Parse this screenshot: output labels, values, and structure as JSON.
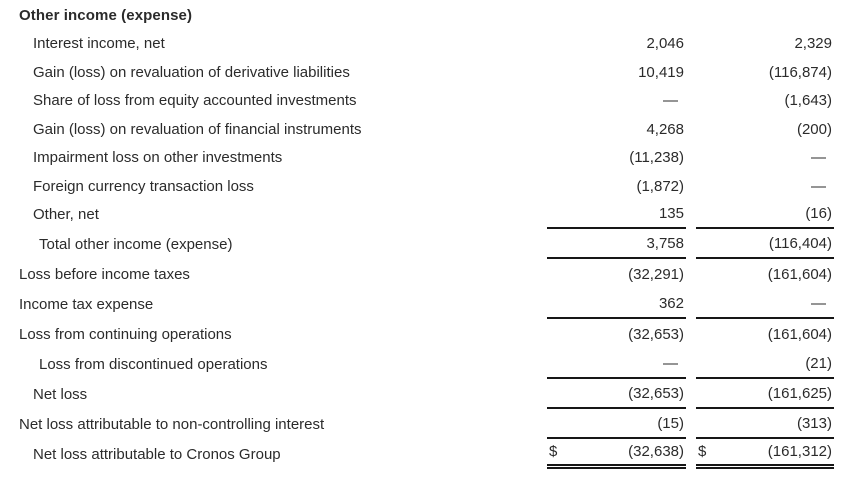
{
  "table": {
    "currency_symbol": "$",
    "dash": "—",
    "columns": [
      "current-period",
      "prior-period"
    ],
    "rows": [
      {
        "label": "Other income (expense)",
        "indent": 0,
        "bold": true,
        "dollar": false,
        "rule": null,
        "values": [
          "",
          ""
        ]
      },
      {
        "label": "Interest income, net",
        "indent": 1,
        "bold": false,
        "dollar": false,
        "rule": null,
        "values": [
          "2,046",
          "2,329"
        ]
      },
      {
        "label": "Gain (loss) on revaluation of derivative liabilities",
        "indent": 1,
        "bold": false,
        "dollar": false,
        "rule": null,
        "values": [
          "10,419",
          "(116,874)"
        ]
      },
      {
        "label": "Share of loss from equity accounted investments",
        "indent": 1,
        "bold": false,
        "dollar": false,
        "rule": null,
        "values": [
          "—",
          "(1,643)"
        ]
      },
      {
        "label": "Gain (loss) on revaluation of financial instruments",
        "indent": 1,
        "bold": false,
        "dollar": false,
        "rule": null,
        "values": [
          "4,268",
          "(200)"
        ]
      },
      {
        "label": "Impairment loss on other investments",
        "indent": 1,
        "bold": false,
        "dollar": false,
        "rule": null,
        "values": [
          "(11,238)",
          "—"
        ]
      },
      {
        "label": "Foreign currency transaction loss",
        "indent": 1,
        "bold": false,
        "dollar": false,
        "rule": null,
        "values": [
          "(1,872)",
          "—"
        ]
      },
      {
        "label": "Other, net",
        "indent": 1,
        "bold": false,
        "dollar": false,
        "rule": "single",
        "values": [
          "135",
          "(16)"
        ]
      },
      {
        "label": "Total other income (expense)",
        "indent": 2,
        "bold": false,
        "dollar": false,
        "rule": "single",
        "values": [
          "3,758",
          "(116,404)"
        ]
      },
      {
        "label": "Loss before income taxes",
        "indent": 0,
        "bold": false,
        "dollar": false,
        "rule": null,
        "values": [
          "(32,291)",
          "(161,604)"
        ]
      },
      {
        "label": "Income tax expense",
        "indent": 0,
        "bold": false,
        "dollar": false,
        "rule": "single",
        "values": [
          "362",
          "—"
        ]
      },
      {
        "label": "Loss from continuing operations",
        "indent": 0,
        "bold": false,
        "dollar": false,
        "rule": null,
        "values": [
          "(32,653)",
          "(161,604)"
        ]
      },
      {
        "label": "Loss from discontinued operations",
        "indent": 2,
        "bold": false,
        "dollar": false,
        "rule": "single",
        "values": [
          "—",
          "(21)"
        ]
      },
      {
        "label": "Net loss",
        "indent": 1,
        "bold": false,
        "dollar": false,
        "rule": "single",
        "values": [
          "(32,653)",
          "(161,625)"
        ]
      },
      {
        "label": "Net loss attributable to non-controlling interest",
        "indent": 0,
        "bold": false,
        "dollar": false,
        "rule": "single",
        "values": [
          "(15)",
          "(313)"
        ]
      },
      {
        "label": "Net loss attributable to Cronos Group",
        "indent": 1,
        "bold": false,
        "dollar": true,
        "rule": "double",
        "values": [
          "(32,638)",
          "(161,312)"
        ]
      }
    ]
  },
  "colors": {
    "text": "#2b2b2b",
    "rule": "#161616",
    "background": "#ffffff"
  }
}
